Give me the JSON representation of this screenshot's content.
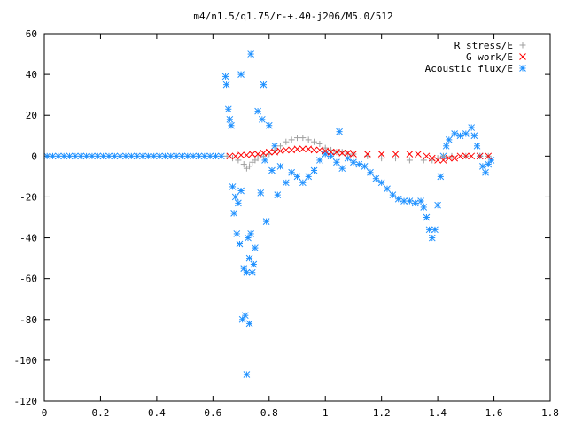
{
  "chart_data": {
    "type": "scatter",
    "title": "m4/n1.5/q1.75/r-+.40-j206/M5.0/512",
    "xlabel": "",
    "ylabel": "",
    "xlim": [
      0,
      1.8
    ],
    "ylim": [
      -120,
      60
    ],
    "xticks": [
      0,
      0.2,
      0.4,
      0.6,
      0.8,
      1,
      1.2,
      1.4,
      1.6,
      1.8
    ],
    "xtick_labels": [
      "0",
      "0.2",
      "0.4",
      "0.6",
      "0.8",
      "1",
      "1.2",
      "1.4",
      "1.6",
      "1.8"
    ],
    "yticks": [
      -120,
      -100,
      -80,
      -60,
      -40,
      -20,
      0,
      20,
      40,
      60
    ],
    "ytick_labels": [
      "-120",
      "-100",
      "-80",
      "-60",
      "-40",
      "-20",
      "0",
      "20",
      "40",
      "60"
    ],
    "grid": false,
    "legend_position": "top-right",
    "series": [
      {
        "name": "R stress/E",
        "marker": "plus",
        "color": "#a0a0a0",
        "points": [
          [
            0.65,
            0
          ],
          [
            0.67,
            -1
          ],
          [
            0.69,
            -2
          ],
          [
            0.71,
            -4
          ],
          [
            0.72,
            -6
          ],
          [
            0.73,
            -5
          ],
          [
            0.74,
            -3
          ],
          [
            0.75,
            -2
          ],
          [
            0.76,
            -1
          ],
          [
            0.78,
            0
          ],
          [
            0.8,
            1
          ],
          [
            0.82,
            3
          ],
          [
            0.84,
            5
          ],
          [
            0.86,
            7
          ],
          [
            0.88,
            8
          ],
          [
            0.9,
            9
          ],
          [
            0.92,
            9
          ],
          [
            0.94,
            8
          ],
          [
            0.96,
            7
          ],
          [
            0.98,
            6
          ],
          [
            1.0,
            4
          ],
          [
            1.02,
            3
          ],
          [
            1.04,
            2
          ],
          [
            1.06,
            2
          ],
          [
            1.08,
            1
          ],
          [
            1.1,
            1
          ],
          [
            1.15,
            0
          ],
          [
            1.2,
            -1
          ],
          [
            1.25,
            -1
          ],
          [
            1.3,
            -2
          ],
          [
            1.35,
            -2
          ],
          [
            1.38,
            -2
          ],
          [
            1.4,
            -1
          ],
          [
            1.42,
            0
          ],
          [
            1.45,
            0
          ],
          [
            1.5,
            0
          ],
          [
            1.55,
            0
          ],
          [
            1.58,
            0
          ]
        ]
      },
      {
        "name": "G work/E",
        "marker": "cross",
        "color": "#ff0000",
        "points": [
          [
            0.66,
            0
          ],
          [
            0.68,
            0
          ],
          [
            0.7,
            0.5
          ],
          [
            0.72,
            0.5
          ],
          [
            0.74,
            1
          ],
          [
            0.76,
            1
          ],
          [
            0.78,
            1.5
          ],
          [
            0.8,
            2
          ],
          [
            0.82,
            2
          ],
          [
            0.84,
            2.5
          ],
          [
            0.86,
            3
          ],
          [
            0.88,
            3
          ],
          [
            0.9,
            3.5
          ],
          [
            0.92,
            3.5
          ],
          [
            0.94,
            3.5
          ],
          [
            0.96,
            3
          ],
          [
            0.98,
            3
          ],
          [
            1.0,
            2.5
          ],
          [
            1.02,
            2
          ],
          [
            1.04,
            2
          ],
          [
            1.06,
            1.5
          ],
          [
            1.08,
            1.5
          ],
          [
            1.1,
            1
          ],
          [
            1.15,
            1
          ],
          [
            1.2,
            1
          ],
          [
            1.25,
            1
          ],
          [
            1.3,
            1
          ],
          [
            1.33,
            1
          ],
          [
            1.36,
            0
          ],
          [
            1.38,
            -1
          ],
          [
            1.4,
            -2
          ],
          [
            1.42,
            -2
          ],
          [
            1.44,
            -1
          ],
          [
            1.46,
            -1
          ],
          [
            1.48,
            0
          ],
          [
            1.5,
            0
          ],
          [
            1.52,
            0
          ],
          [
            1.55,
            0
          ],
          [
            1.58,
            0
          ]
        ]
      },
      {
        "name": "Acoustic flux/E",
        "marker": "star",
        "color": "#1e90ff",
        "points": [
          [
            0.01,
            0
          ],
          [
            0.03,
            0
          ],
          [
            0.05,
            0
          ],
          [
            0.07,
            0
          ],
          [
            0.09,
            0
          ],
          [
            0.11,
            0
          ],
          [
            0.13,
            0
          ],
          [
            0.15,
            0
          ],
          [
            0.17,
            0
          ],
          [
            0.19,
            0
          ],
          [
            0.21,
            0
          ],
          [
            0.23,
            0
          ],
          [
            0.25,
            0
          ],
          [
            0.27,
            0
          ],
          [
            0.29,
            0
          ],
          [
            0.31,
            0
          ],
          [
            0.33,
            0
          ],
          [
            0.35,
            0
          ],
          [
            0.37,
            0
          ],
          [
            0.39,
            0
          ],
          [
            0.41,
            0
          ],
          [
            0.43,
            0
          ],
          [
            0.45,
            0
          ],
          [
            0.47,
            0
          ],
          [
            0.49,
            0
          ],
          [
            0.51,
            0
          ],
          [
            0.53,
            0
          ],
          [
            0.55,
            0
          ],
          [
            0.57,
            0
          ],
          [
            0.59,
            0
          ],
          [
            0.61,
            0
          ],
          [
            0.63,
            0
          ],
          [
            0.645,
            39
          ],
          [
            0.648,
            35
          ],
          [
            0.655,
            23
          ],
          [
            0.66,
            18
          ],
          [
            0.665,
            15
          ],
          [
            0.67,
            -15
          ],
          [
            0.675,
            -28
          ],
          [
            0.68,
            -20
          ],
          [
            0.685,
            -38
          ],
          [
            0.69,
            -23
          ],
          [
            0.695,
            -43
          ],
          [
            0.7,
            -17
          ],
          [
            0.705,
            -80
          ],
          [
            0.71,
            -55
          ],
          [
            0.715,
            -78
          ],
          [
            0.72,
            -57
          ],
          [
            0.72,
            -107
          ],
          [
            0.725,
            -40
          ],
          [
            0.73,
            -82
          ],
          [
            0.73,
            -50
          ],
          [
            0.735,
            -38
          ],
          [
            0.74,
            -57
          ],
          [
            0.745,
            -53
          ],
          [
            0.75,
            -45
          ],
          [
            0.735,
            50
          ],
          [
            0.7,
            40
          ],
          [
            0.76,
            22
          ],
          [
            0.78,
            35
          ],
          [
            0.77,
            -18
          ],
          [
            0.79,
            -32
          ],
          [
            0.775,
            18
          ],
          [
            0.8,
            15
          ],
          [
            0.785,
            -2
          ],
          [
            0.82,
            5
          ],
          [
            0.83,
            -19
          ],
          [
            0.81,
            -7
          ],
          [
            0.84,
            -5
          ],
          [
            0.86,
            -13
          ],
          [
            0.88,
            -8
          ],
          [
            0.9,
            -10
          ],
          [
            0.92,
            -13
          ],
          [
            0.94,
            -10
          ],
          [
            0.96,
            -7
          ],
          [
            0.98,
            -2
          ],
          [
            1.0,
            1
          ],
          [
            1.02,
            0
          ],
          [
            1.04,
            -3
          ],
          [
            1.06,
            -6
          ],
          [
            1.05,
            12
          ],
          [
            1.08,
            -1
          ],
          [
            1.1,
            -3
          ],
          [
            1.12,
            -4
          ],
          [
            1.14,
            -5
          ],
          [
            1.16,
            -8
          ],
          [
            1.18,
            -11
          ],
          [
            1.2,
            -13
          ],
          [
            1.22,
            -16
          ],
          [
            1.24,
            -19
          ],
          [
            1.26,
            -21
          ],
          [
            1.28,
            -22
          ],
          [
            1.3,
            -22
          ],
          [
            1.32,
            -23
          ],
          [
            1.34,
            -22
          ],
          [
            1.35,
            -25
          ],
          [
            1.36,
            -30
          ],
          [
            1.37,
            -36
          ],
          [
            1.38,
            -40
          ],
          [
            1.39,
            -36
          ],
          [
            1.4,
            -24
          ],
          [
            1.41,
            -10
          ],
          [
            1.42,
            0
          ],
          [
            1.43,
            5
          ],
          [
            1.44,
            8
          ],
          [
            1.46,
            11
          ],
          [
            1.48,
            10
          ],
          [
            1.5,
            11
          ],
          [
            1.52,
            14
          ],
          [
            1.53,
            10
          ],
          [
            1.54,
            5
          ],
          [
            1.55,
            0
          ],
          [
            1.56,
            -5
          ],
          [
            1.57,
            -8
          ],
          [
            1.58,
            -4
          ],
          [
            1.59,
            -2
          ]
        ]
      }
    ]
  }
}
